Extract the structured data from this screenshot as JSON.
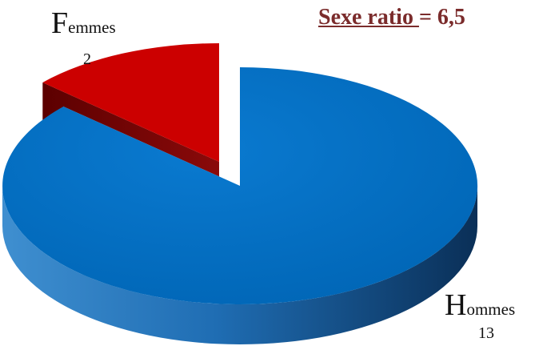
{
  "chart_data": {
    "type": "pie",
    "title_parts": {
      "underlined": "Sexe ratio ",
      "rest": "= 6,5"
    },
    "slices": [
      {
        "label_initial": "F",
        "label_rest": "emmes",
        "value": 2,
        "value_text": "2",
        "color": "#cc0000",
        "side_color": "#7a0000",
        "exploded": true
      },
      {
        "label_initial": "H",
        "label_rest": "ommes",
        "value": 13,
        "value_text": "13",
        "color": "#0070c0",
        "side_color": "#0b3f73",
        "exploded": false
      }
    ]
  },
  "colors": {
    "title": "#7b2c2c"
  }
}
